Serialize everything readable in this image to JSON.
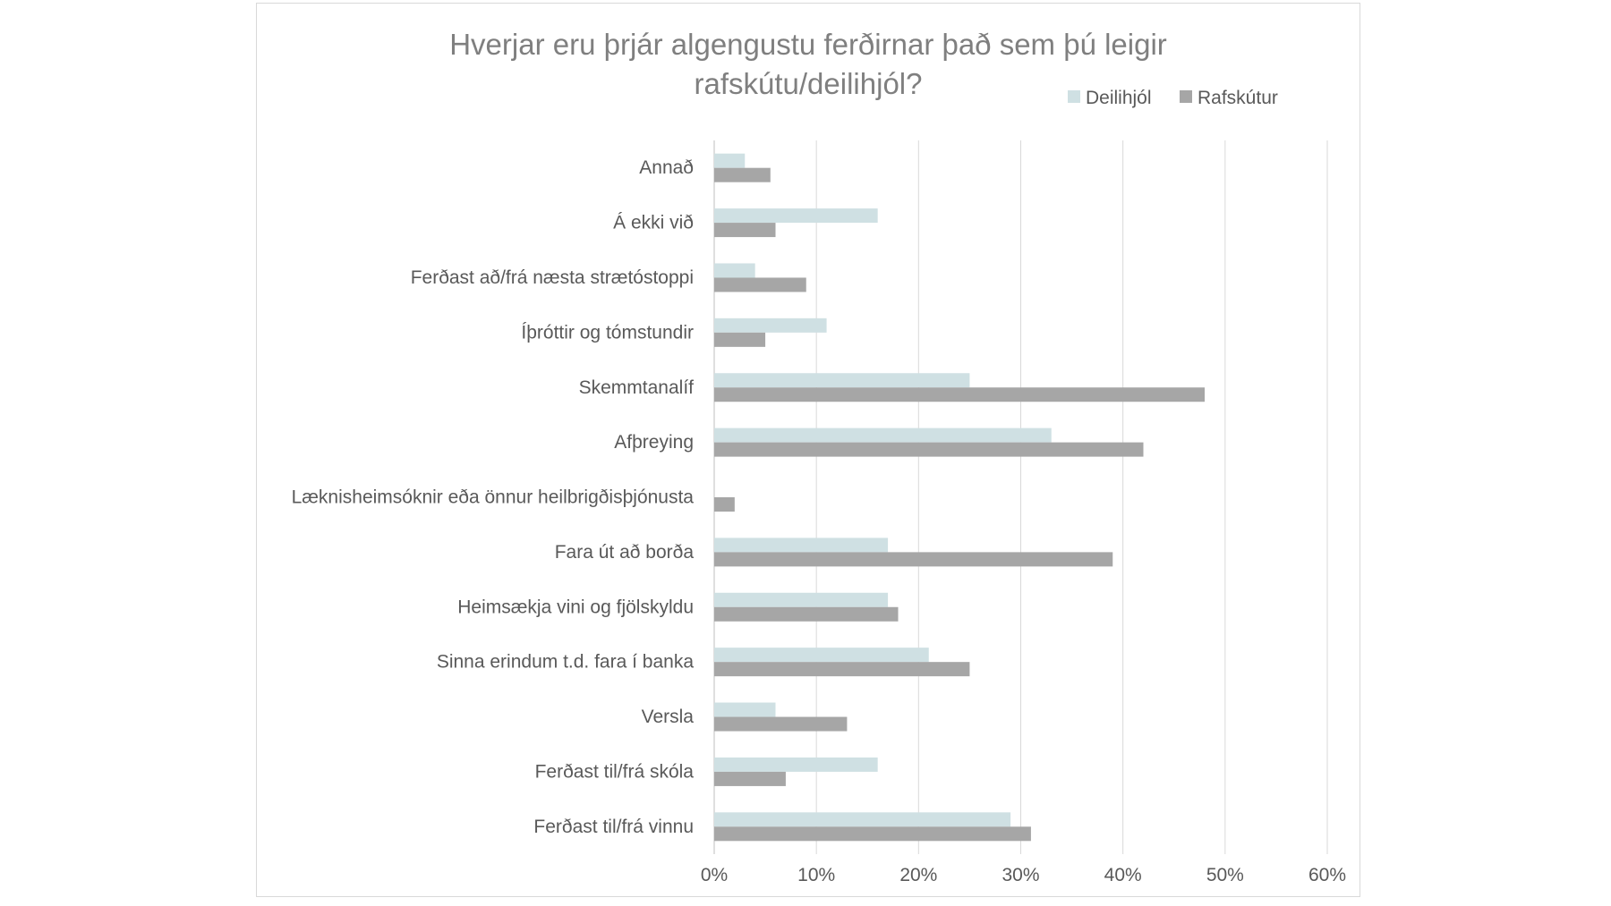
{
  "chart_data": {
    "type": "bar",
    "orientation": "horizontal",
    "title_lines": [
      "Hverjar eru þrjár algengustu ferðirnar það sem þú leigir",
      "rafskútu/deilihjól?"
    ],
    "categories": [
      "Annað",
      "Á ekki við",
      "Ferðast að/frá næsta strætóstoppi",
      "Íþróttir og tómstundir",
      "Skemmtanalíf",
      "Afþreying",
      "Læknisheimsóknir eða önnur heilbrigðisþjónusta",
      "Fara út að borða",
      "Heimsækja vini og fjölskyldu",
      "Sinna erindum t.d. fara í banka",
      "Versla",
      "Ferðast til/frá skóla",
      "Ferðast til/frá vinnu"
    ],
    "series": [
      {
        "name": "Deilihjól",
        "color": "#cfe0e3",
        "values": [
          3,
          16,
          4,
          11,
          25,
          33,
          0,
          17,
          17,
          21,
          6,
          16,
          29
        ]
      },
      {
        "name": "Rafskútur",
        "color": "#a6a6a6",
        "values": [
          5.5,
          6,
          9,
          5,
          48,
          42,
          2,
          39,
          18,
          25,
          13,
          7,
          31
        ]
      }
    ],
    "xlim": [
      0,
      60
    ],
    "xticks": [
      "0%",
      "10%",
      "20%",
      "30%",
      "40%",
      "50%",
      "60%"
    ],
    "tick_step": 10,
    "grid": true,
    "legend_position": "top-right"
  }
}
